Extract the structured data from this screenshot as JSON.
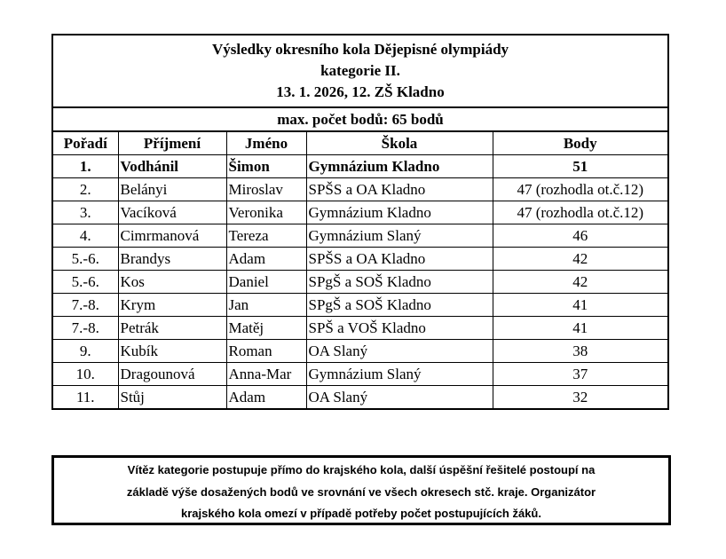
{
  "title": {
    "line1": "Výsledky okresního kola Dějepisné olympiády",
    "line2": "kategorie II.",
    "line3": "13. 1. 2026, 12. ZŠ Kladno"
  },
  "max_points": "max. počet bodů: 65 bodů",
  "columns": [
    "Pořadí",
    "Příjmení",
    "Jméno",
    "Škola",
    "Body"
  ],
  "rows": [
    [
      "1.",
      "Vodhánil",
      "Šimon",
      "Gymnázium Kladno",
      "51"
    ],
    [
      "2.",
      "Belányi",
      "Miroslav",
      "SPŠS a OA Kladno",
      "47 (rozhodla ot.č.12)"
    ],
    [
      "3.",
      "Vacíková",
      "Veronika",
      "Gymnázium Kladno",
      "47 (rozhodla ot.č.12)"
    ],
    [
      "4.",
      "Cimrmanová",
      "Tereza",
      "Gymnázium Slaný",
      "46"
    ],
    [
      "5.-6.",
      "Brandys",
      "Adam",
      "SPŠS a OA Kladno",
      "42"
    ],
    [
      "5.-6.",
      "Kos",
      "Daniel",
      "SPgŠ a SOŠ Kladno",
      "42"
    ],
    [
      "7.-8.",
      "Krym",
      "Jan",
      "SPgŠ a SOŠ Kladno",
      "41"
    ],
    [
      "7.-8.",
      "Petrák",
      "Matěj",
      "SPŠ a VOŠ Kladno",
      "41"
    ],
    [
      "9.",
      "Kubík",
      "Roman",
      "OA Slaný",
      "38"
    ],
    [
      "10.",
      "Dragounová",
      "Anna-Mar",
      "Gymnázium Slaný",
      "37"
    ],
    [
      "11.",
      "Stůj",
      "Adam",
      "OA Slaný",
      "32"
    ]
  ],
  "note": {
    "line1": "Vítěz kategorie postupuje přímo do krajského kola, další úspěšní řešitelé postoupí na",
    "line2": "základě výše dosažených bodů ve srovnání ve všech okresech stč. kraje. Organizátor",
    "line3": "krajského kola omezí v případě potřeby počet postupujících žáků."
  }
}
